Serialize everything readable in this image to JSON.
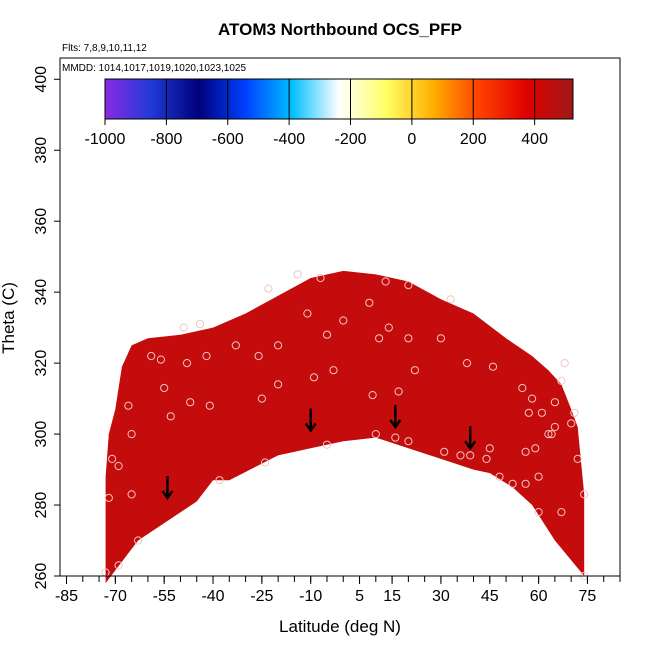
{
  "chart_data": {
    "type": "heatmap",
    "title": "ATOM3 Northbound OCS_PFP",
    "subtitle_flights": "Flts: 7,8,9,10,11,12",
    "subtitle_dates": "MMDD: 1014,1017,1019,1020,1023,1025",
    "xlabel": "Latitude (deg N)",
    "ylabel": "Theta (C)",
    "xlim": [
      -87,
      85
    ],
    "ylim": [
      260,
      406
    ],
    "x_ticks": [
      -85,
      -70,
      -55,
      -40,
      -25,
      -10,
      5,
      15,
      30,
      45,
      60,
      75
    ],
    "y_ticks": [
      260,
      280,
      300,
      320,
      340,
      360,
      380,
      400
    ],
    "colorbar": {
      "min": -1000,
      "max": 525,
      "ticks": [
        -1000,
        -800,
        -600,
        -400,
        -200,
        0,
        200,
        400
      ],
      "colors": [
        "#8a2be2",
        "#1e3ad6",
        "#00007a",
        "#0040ff",
        "#00bfff",
        "#ffffff",
        "#ffff66",
        "#ffb000",
        "#ff4000",
        "#e00000",
        "#a01818"
      ]
    },
    "field_value_range": [
      300,
      500
    ],
    "field_color": "#c40c0c",
    "domain_upper": [
      [
        -73,
        288
      ],
      [
        -72,
        300
      ],
      [
        -70,
        307
      ],
      [
        -68,
        319
      ],
      [
        -65,
        325
      ],
      [
        -60,
        327
      ],
      [
        -50,
        328
      ],
      [
        -40,
        330
      ],
      [
        -30,
        334
      ],
      [
        -20,
        339
      ],
      [
        -10,
        344
      ],
      [
        0,
        346
      ],
      [
        10,
        345
      ],
      [
        20,
        343
      ],
      [
        30,
        338
      ],
      [
        40,
        334
      ],
      [
        50,
        327
      ],
      [
        58,
        322
      ],
      [
        63,
        318
      ],
      [
        67,
        314
      ],
      [
        70,
        307
      ],
      [
        72,
        302
      ],
      [
        74,
        283
      ]
    ],
    "domain_lower": [
      [
        -73,
        258
      ],
      [
        -63,
        270
      ],
      [
        -45,
        281
      ],
      [
        -40,
        287
      ],
      [
        -35,
        287
      ],
      [
        -20,
        294
      ],
      [
        -10,
        296
      ],
      [
        0,
        298
      ],
      [
        10,
        299
      ],
      [
        20,
        296
      ],
      [
        30,
        293
      ],
      [
        40,
        290
      ],
      [
        45,
        289
      ],
      [
        52,
        285
      ],
      [
        58,
        280
      ],
      [
        65,
        270
      ],
      [
        74,
        260
      ]
    ],
    "samples": [
      [
        -73,
        261
      ],
      [
        -72,
        282
      ],
      [
        -71,
        293
      ],
      [
        -69,
        291
      ],
      [
        -69,
        263
      ],
      [
        -66,
        308
      ],
      [
        -65,
        300
      ],
      [
        -65,
        283
      ],
      [
        -63,
        270
      ],
      [
        -59,
        322
      ],
      [
        -56,
        321
      ],
      [
        -55,
        313
      ],
      [
        -53,
        305
      ],
      [
        -49,
        330
      ],
      [
        -48,
        320
      ],
      [
        -47,
        309
      ],
      [
        -44,
        331
      ],
      [
        -42,
        322
      ],
      [
        -41,
        308
      ],
      [
        -38,
        287
      ],
      [
        -33,
        325
      ],
      [
        -26,
        322
      ],
      [
        -25,
        310
      ],
      [
        -24,
        292
      ],
      [
        -23,
        341
      ],
      [
        -20,
        325
      ],
      [
        -20,
        314
      ],
      [
        -14,
        345
      ],
      [
        -11,
        334
      ],
      [
        -9,
        316
      ],
      [
        -7,
        344
      ],
      [
        -5,
        328
      ],
      [
        -5,
        297
      ],
      [
        -3,
        318
      ],
      [
        0,
        332
      ],
      [
        8,
        337
      ],
      [
        9,
        311
      ],
      [
        10,
        300
      ],
      [
        11,
        327
      ],
      [
        13,
        343
      ],
      [
        14,
        330
      ],
      [
        16,
        299
      ],
      [
        17,
        312
      ],
      [
        20,
        342
      ],
      [
        20,
        298
      ],
      [
        20,
        327
      ],
      [
        22,
        318
      ],
      [
        30,
        327
      ],
      [
        31,
        295
      ],
      [
        33,
        338
      ],
      [
        36,
        294
      ],
      [
        38,
        320
      ],
      [
        39,
        294
      ],
      [
        44,
        293
      ],
      [
        45,
        296
      ],
      [
        46,
        319
      ],
      [
        48,
        288
      ],
      [
        52,
        286
      ],
      [
        55,
        313
      ],
      [
        56,
        295
      ],
      [
        56,
        286
      ],
      [
        57,
        306
      ],
      [
        58,
        310
      ],
      [
        59,
        296
      ],
      [
        60,
        288
      ],
      [
        60,
        278
      ],
      [
        61,
        306
      ],
      [
        63,
        300
      ],
      [
        64,
        300
      ],
      [
        65,
        309
      ],
      [
        65,
        302
      ],
      [
        67,
        315
      ],
      [
        67,
        278
      ],
      [
        68,
        320
      ],
      [
        70,
        303
      ],
      [
        71,
        306
      ],
      [
        72,
        293
      ],
      [
        74,
        260
      ],
      [
        74,
        283
      ]
    ],
    "arrows": [
      [
        -54,
        282
      ],
      [
        -10,
        301
      ],
      [
        16,
        302
      ],
      [
        39,
        296
      ]
    ]
  }
}
